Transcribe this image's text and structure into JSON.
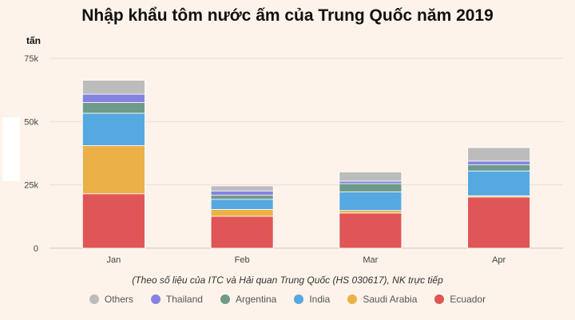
{
  "chart_data": {
    "type": "bar",
    "stacked": true,
    "title": "Nhập khẩu tôm nước ấm của Trung Quốc năm 2019",
    "ylabel": "tấn",
    "xlabel": "",
    "ylim": [
      0,
      75000
    ],
    "yticks": [
      0,
      25000,
      50000,
      75000
    ],
    "ytick_labels": [
      "0",
      "25k",
      "50k",
      "75k"
    ],
    "categories": [
      "Jan",
      "Feb",
      "Mar",
      "Apr"
    ],
    "grid": true,
    "legend_position": "bottom",
    "series": [
      {
        "name": "Ecuador",
        "color": "#e05656",
        "values": [
          21500,
          12600,
          13900,
          20200
        ]
      },
      {
        "name": "Saudi Arabia",
        "color": "#ebb046",
        "values": [
          19000,
          2700,
          1000,
          500
        ]
      },
      {
        "name": "India",
        "color": "#55a8e0",
        "values": [
          12800,
          4000,
          7300,
          9800
        ]
      },
      {
        "name": "Argentina",
        "color": "#6f9a8a",
        "values": [
          4200,
          1600,
          3300,
          2400
        ]
      },
      {
        "name": "Thailand",
        "color": "#8583e0",
        "values": [
          3300,
          1700,
          1000,
          1500
        ]
      },
      {
        "name": "Others",
        "color": "#bcbcbc",
        "values": [
          5500,
          2000,
          3600,
          5300
        ]
      }
    ],
    "legend_order": [
      "Others",
      "Thailand",
      "Argentina",
      "India",
      "Saudi Arabia",
      "Ecuador"
    ],
    "note": "(Theo số liệu của ITC và Hải quan Trung Quốc (HS 030617), NK trực tiếp"
  }
}
